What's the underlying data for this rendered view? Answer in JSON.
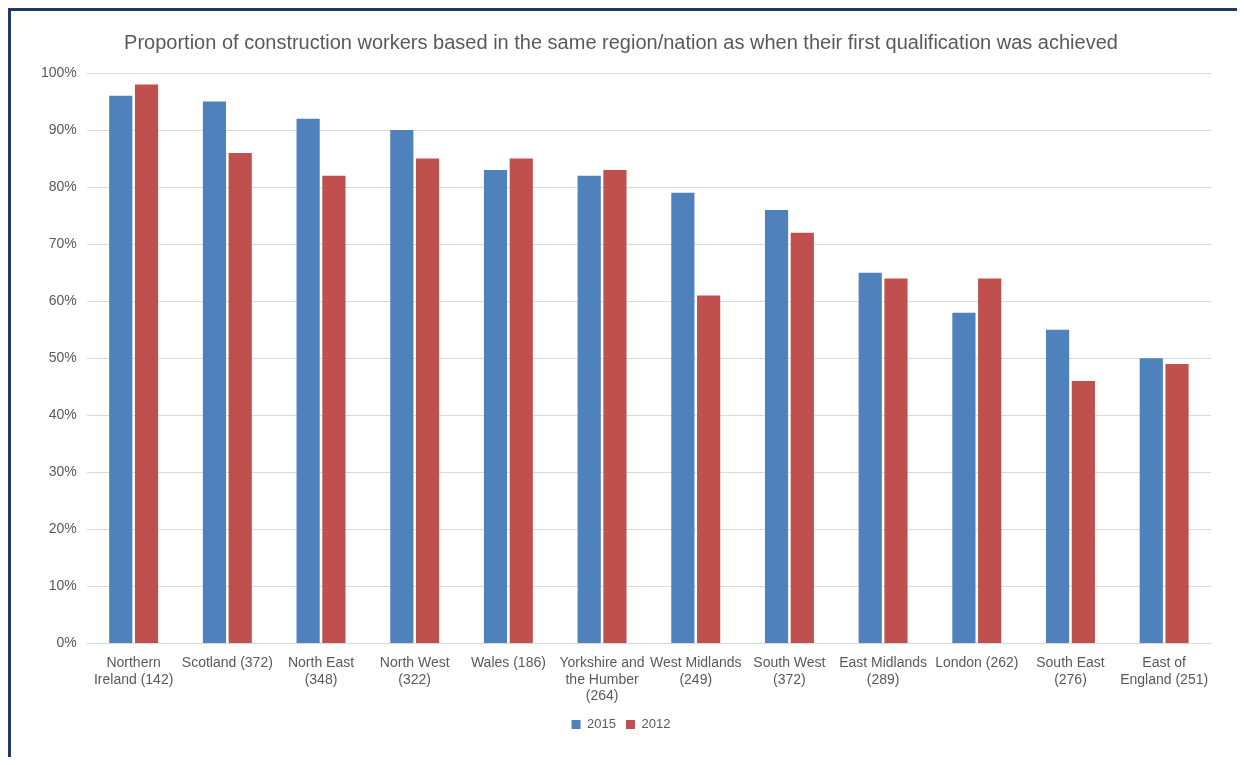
{
  "chart_data": {
    "type": "bar",
    "title": "Proportion of construction workers based in the same region/nation as when their first qualification was achieved",
    "categories": [
      "Northern Ireland (142)",
      "Scotland (372)",
      "North East (348)",
      "North West (322)",
      "Wales (186)",
      "Yorkshire and the Humber (264)",
      "West Midlands (249)",
      "South West (372)",
      "East Midlands (289)",
      "London (262)",
      "South East (276)",
      "East of England (251)"
    ],
    "series": [
      {
        "name": "2015",
        "color": "#4f81bd",
        "values": [
          96,
          95,
          92,
          90,
          83,
          82,
          79,
          76,
          65,
          58,
          55,
          50
        ]
      },
      {
        "name": "2012",
        "color": "#c0504d",
        "values": [
          98,
          86,
          82,
          85,
          85,
          83,
          61,
          72,
          64,
          64,
          46,
          49
        ]
      }
    ],
    "ylim": [
      0,
      100
    ],
    "yticks": [
      {
        "value": 0,
        "label": "0%"
      },
      {
        "value": 10,
        "label": "10%"
      },
      {
        "value": 20,
        "label": "20%"
      },
      {
        "value": 30,
        "label": "30%"
      },
      {
        "value": 40,
        "label": "40%"
      },
      {
        "value": 50,
        "label": "50%"
      },
      {
        "value": 60,
        "label": "60%"
      },
      {
        "value": 70,
        "label": "70%"
      },
      {
        "value": 80,
        "label": "80%"
      },
      {
        "value": 90,
        "label": "90%"
      },
      {
        "value": 100,
        "label": "100%"
      }
    ],
    "grid": "y",
    "legend": "bottom"
  }
}
